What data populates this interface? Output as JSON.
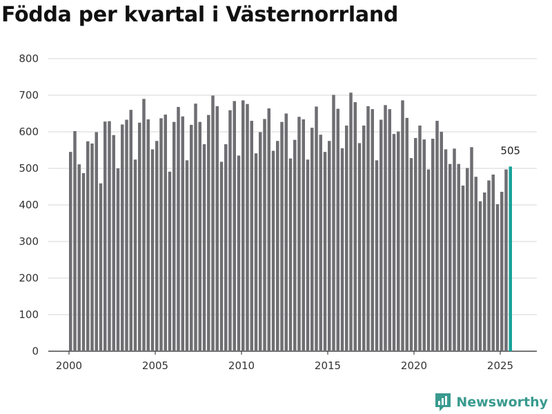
{
  "title": "Födda per kvartal i Västernorrland",
  "brand": {
    "name": "Newsworthy"
  },
  "colors": {
    "bar": "#6e6e73",
    "highlight": "#17a398",
    "grid": "#d6d6d6",
    "brand": "#3a9a8f"
  },
  "chart_data": {
    "type": "bar",
    "title": "Födda per kvartal i Västernorrland",
    "xlabel": "",
    "ylabel": "",
    "ylim": [
      0,
      800
    ],
    "yticks": [
      0,
      100,
      200,
      300,
      400,
      500,
      600,
      700,
      800
    ],
    "xticks": [
      2000,
      2005,
      2010,
      2015,
      2020,
      2025
    ],
    "grid": true,
    "start_year": 2000,
    "start_quarter": 1,
    "highlight_label": "505",
    "values": [
      545,
      602,
      511,
      487,
      574,
      568,
      599,
      459,
      628,
      629,
      591,
      500,
      620,
      633,
      660,
      524,
      625,
      690,
      634,
      552,
      575,
      637,
      647,
      491,
      627,
      668,
      642,
      522,
      619,
      677,
      627,
      566,
      646,
      699,
      670,
      518,
      566,
      659,
      684,
      535,
      686,
      676,
      630,
      541,
      599,
      635,
      664,
      548,
      575,
      627,
      650,
      527,
      578,
      641,
      634,
      524,
      611,
      669,
      592,
      545,
      575,
      701,
      663,
      555,
      617,
      707,
      681,
      569,
      617,
      670,
      662,
      522,
      633,
      673,
      662,
      594,
      601,
      686,
      638,
      528,
      583,
      617,
      579,
      497,
      581,
      630,
      600,
      552,
      512,
      554,
      512,
      453,
      501,
      558,
      477,
      410,
      434,
      467,
      483,
      402,
      436,
      497,
      505
    ]
  }
}
